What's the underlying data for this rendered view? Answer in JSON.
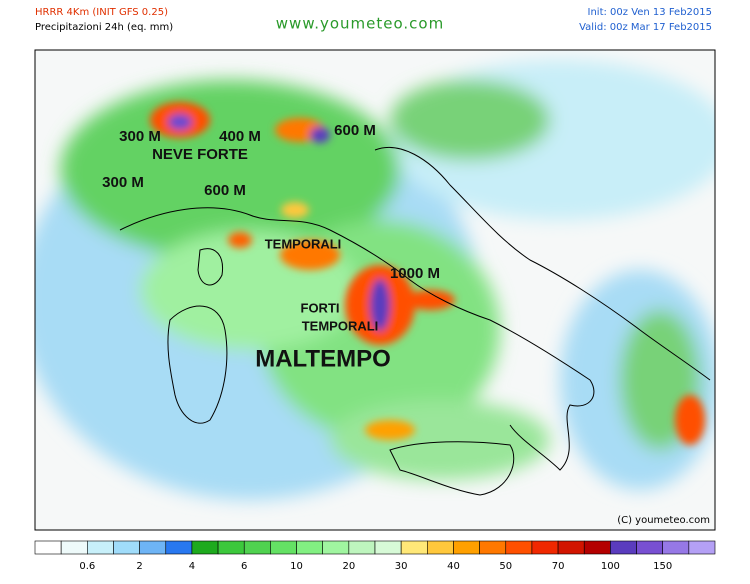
{
  "header": {
    "model": "HRRR 4Km (INIT GFS 0.25)",
    "field": "Precipitazioni 24h (eq. mm)",
    "site": "www.youmeteo.com",
    "init": "Init: 00z Ven  13 Feb2015",
    "valid": "Valid: 00z Mar  17 Feb2015"
  },
  "map": {
    "annotations": [
      {
        "text": "300 M",
        "size": "medium"
      },
      {
        "text": "400 M",
        "size": "medium"
      },
      {
        "text": "600 M",
        "size": "medium"
      },
      {
        "text": "NEVE FORTE",
        "size": "medium"
      },
      {
        "text": "300 M",
        "size": "medium"
      },
      {
        "text": "600 M",
        "size": "medium"
      },
      {
        "text": "TEMPORALI",
        "size": "small"
      },
      {
        "text": "1000 M",
        "size": "medium"
      },
      {
        "text": "FORTI",
        "size": "small"
      },
      {
        "text": "TEMPORALI",
        "size": "small"
      },
      {
        "text": "MALTEMPO",
        "size": "large"
      }
    ],
    "copyright": "(C) youmeteo.com"
  },
  "colorbar": {
    "colors": [
      "#ffffff",
      "#eefafa",
      "#c8f0fa",
      "#a0dcfa",
      "#6eb4f5",
      "#2878f0",
      "#1eaa1e",
      "#3cc83c",
      "#50d250",
      "#64e164",
      "#82f082",
      "#a0f5a0",
      "#bef5be",
      "#d7fad7",
      "#ffe878",
      "#ffc83c",
      "#ffa000",
      "#ff7800",
      "#ff5000",
      "#f02800",
      "#d21400",
      "#b40000",
      "#5a3cbe",
      "#7850d2",
      "#9678e6",
      "#b4a0f5"
    ],
    "labels": [
      0.6,
      2,
      4,
      6,
      10,
      20,
      30,
      40,
      50,
      70,
      100,
      150
    ]
  }
}
